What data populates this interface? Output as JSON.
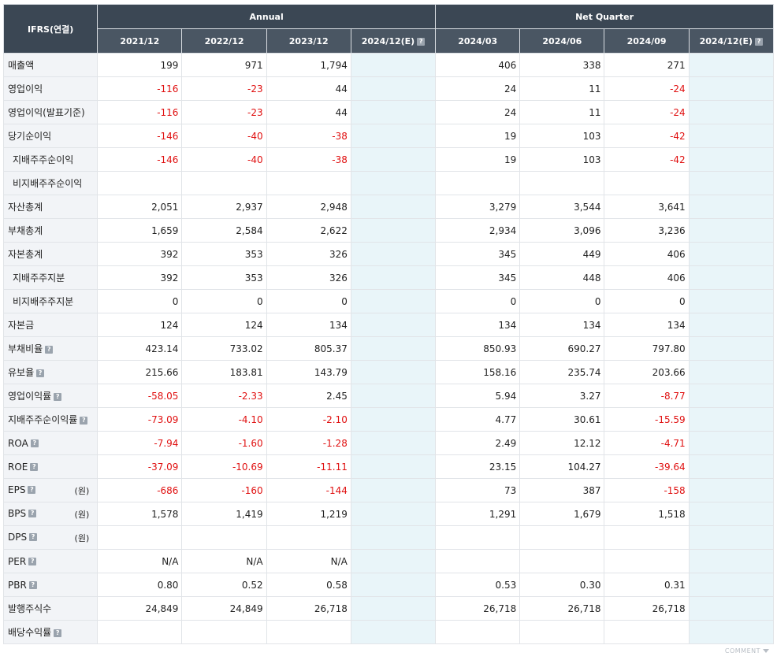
{
  "header": {
    "corner": "IFRS(연결)",
    "annual_label": "Annual",
    "quarter_label": "Net Quarter",
    "periods": [
      "2021/12",
      "2022/12",
      "2023/12",
      "2024/12(E)",
      "2024/03",
      "2024/06",
      "2024/09",
      "2024/12(E)"
    ]
  },
  "rows": [
    {
      "label": "매출액",
      "values": [
        "199",
        "971",
        "1,794",
        "",
        "406",
        "338",
        "271",
        ""
      ]
    },
    {
      "label": "영업이익",
      "values": [
        "-116",
        "-23",
        "44",
        "",
        "24",
        "11",
        "-24",
        ""
      ]
    },
    {
      "label": "영업이익(발표기준)",
      "values": [
        "-116",
        "-23",
        "44",
        "",
        "24",
        "11",
        "-24",
        ""
      ]
    },
    {
      "label": "당기순이익",
      "values": [
        "-146",
        "-40",
        "-38",
        "",
        "19",
        "103",
        "-42",
        ""
      ]
    },
    {
      "label": "지배주주순이익",
      "values": [
        "-146",
        "-40",
        "-38",
        "",
        "19",
        "103",
        "-42",
        ""
      ]
    },
    {
      "label": "비지배주주순이익",
      "values": [
        "",
        "",
        "",
        "",
        "",
        "",
        "",
        ""
      ]
    },
    {
      "label": "자산총계",
      "values": [
        "2,051",
        "2,937",
        "2,948",
        "",
        "3,279",
        "3,544",
        "3,641",
        ""
      ]
    },
    {
      "label": "부채총계",
      "values": [
        "1,659",
        "2,584",
        "2,622",
        "",
        "2,934",
        "3,096",
        "3,236",
        ""
      ]
    },
    {
      "label": "자본총계",
      "values": [
        "392",
        "353",
        "326",
        "",
        "345",
        "449",
        "406",
        ""
      ]
    },
    {
      "label": "지배주주지분",
      "values": [
        "392",
        "353",
        "326",
        "",
        "345",
        "448",
        "406",
        ""
      ]
    },
    {
      "label": "비지배주주지분",
      "values": [
        "0",
        "0",
        "0",
        "",
        "0",
        "0",
        "0",
        ""
      ]
    },
    {
      "label": "자본금",
      "values": [
        "124",
        "124",
        "134",
        "",
        "134",
        "134",
        "134",
        ""
      ]
    },
    {
      "label": "부채비율",
      "values": [
        "423.14",
        "733.02",
        "805.37",
        "",
        "850.93",
        "690.27",
        "797.80",
        ""
      ]
    },
    {
      "label": "유보율",
      "values": [
        "215.66",
        "183.81",
        "143.79",
        "",
        "158.16",
        "235.74",
        "203.66",
        ""
      ]
    },
    {
      "label": "영업이익률",
      "values": [
        "-58.05",
        "-2.33",
        "2.45",
        "",
        "5.94",
        "3.27",
        "-8.77",
        ""
      ]
    },
    {
      "label": "지배주주순이익률",
      "values": [
        "-73.09",
        "-4.10",
        "-2.10",
        "",
        "4.77",
        "30.61",
        "-15.59",
        ""
      ]
    },
    {
      "label": "ROA",
      "values": [
        "-7.94",
        "-1.60",
        "-1.28",
        "",
        "2.49",
        "12.12",
        "-4.71",
        ""
      ]
    },
    {
      "label": "ROE",
      "values": [
        "-37.09",
        "-10.69",
        "-11.11",
        "",
        "23.15",
        "104.27",
        "-39.64",
        ""
      ]
    },
    {
      "label": "EPS",
      "unit": "(원)",
      "values": [
        "-686",
        "-160",
        "-144",
        "",
        "73",
        "387",
        "-158",
        ""
      ]
    },
    {
      "label": "BPS",
      "unit": "(원)",
      "values": [
        "1,578",
        "1,419",
        "1,219",
        "",
        "1,291",
        "1,679",
        "1,518",
        ""
      ]
    },
    {
      "label": "DPS",
      "unit": "(원)",
      "values": [
        "",
        "",
        "",
        "",
        "",
        "",
        "",
        ""
      ]
    },
    {
      "label": "PER",
      "values": [
        "N/A",
        "N/A",
        "N/A",
        "",
        "",
        "",
        "",
        ""
      ]
    },
    {
      "label": "PBR",
      "values": [
        "0.80",
        "0.52",
        "0.58",
        "",
        "0.53",
        "0.30",
        "0.31",
        ""
      ]
    },
    {
      "label": "발행주식수",
      "values": [
        "24,849",
        "24,849",
        "26,718",
        "",
        "26,718",
        "26,718",
        "26,718",
        ""
      ]
    },
    {
      "label": "배당수익률",
      "values": [
        "",
        "",
        "",
        "",
        "",
        "",
        "",
        ""
      ]
    }
  ],
  "row_meta": {
    "indented": [
      4,
      5,
      9,
      10
    ],
    "help": [
      12,
      13,
      14,
      15,
      16,
      17,
      18,
      19,
      20,
      21,
      22,
      24
    ],
    "estimate_columns": [
      3,
      7
    ]
  },
  "help_glyph": "?",
  "footer": {
    "comment_label": "COMMENT"
  },
  "colors": {
    "header_bg": "#3b4754",
    "label_bg": "#f2f4f7",
    "estimate_bg": "#e9f5f9",
    "negative": "#e01010"
  }
}
